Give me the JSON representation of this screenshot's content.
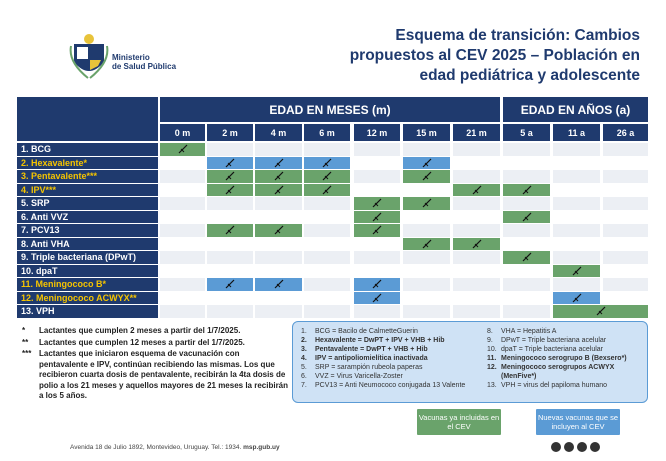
{
  "header": {
    "ministry": [
      "Ministerio",
      "de Salud Pública"
    ],
    "title": [
      "Esquema de transición: Cambios",
      "propuestos al CEV 2025 – Población en",
      "edad pediátrica y adolescente"
    ]
  },
  "table": {
    "groups": [
      "EDAD EN MESES (m)",
      "EDAD EN AÑOS (a)"
    ],
    "columns": [
      "0 m",
      "2 m",
      "4 m",
      "6 m",
      "12 m",
      "15 m",
      "21 m",
      "5 a",
      "11 a",
      "26 a"
    ],
    "rows": [
      {
        "label": "1. BCG",
        "new": false,
        "cells": [
          "#6aa36b",
          null,
          null,
          null,
          null,
          null,
          null,
          null,
          null,
          null
        ]
      },
      {
        "label": "2. Hexavalente*",
        "new": true,
        "cells": [
          null,
          "#5b9bd5",
          "#5b9bd5",
          "#5b9bd5",
          null,
          "#5b9bd5",
          null,
          null,
          null,
          null
        ]
      },
      {
        "label": "3. Pentavalente***",
        "new": true,
        "cells": [
          null,
          "#6aa36b",
          "#6aa36b",
          "#6aa36b",
          null,
          "#6aa36b",
          null,
          null,
          null,
          null
        ]
      },
      {
        "label": "4. IPV***",
        "new": true,
        "cells": [
          null,
          "#6aa36b",
          "#6aa36b",
          "#6aa36b",
          null,
          null,
          "#6aa36b",
          "#6aa36b",
          null,
          null
        ]
      },
      {
        "label": "5. SRP",
        "new": false,
        "cells": [
          null,
          null,
          null,
          null,
          "#6aa36b",
          "#6aa36b",
          null,
          null,
          null,
          null
        ]
      },
      {
        "label": "6. Anti VVZ",
        "new": false,
        "cells": [
          null,
          null,
          null,
          null,
          "#6aa36b",
          null,
          null,
          "#6aa36b",
          null,
          null
        ]
      },
      {
        "label": "7. PCV13",
        "new": false,
        "cells": [
          null,
          "#6aa36b",
          "#6aa36b",
          null,
          "#6aa36b",
          null,
          null,
          null,
          null,
          null
        ]
      },
      {
        "label": "8. Anti VHA",
        "new": false,
        "cells": [
          null,
          null,
          null,
          null,
          null,
          "#6aa36b",
          "#6aa36b",
          null,
          null,
          null
        ]
      },
      {
        "label": "9. Triple bacteriana (DPwT)",
        "new": false,
        "cells": [
          null,
          null,
          null,
          null,
          null,
          null,
          null,
          "#6aa36b",
          null,
          null
        ]
      },
      {
        "label": "10. dpaT",
        "new": false,
        "cells": [
          null,
          null,
          null,
          null,
          null,
          null,
          null,
          null,
          "#6aa36b",
          null
        ]
      },
      {
        "label": "11. Meningococo B*",
        "new": true,
        "cells": [
          null,
          "#5b9bd5",
          "#5b9bd5",
          null,
          "#5b9bd5",
          null,
          null,
          null,
          null,
          null
        ]
      },
      {
        "label": "12. Meningococo ACWYX**",
        "new": true,
        "cells": [
          null,
          null,
          null,
          null,
          "#5b9bd5",
          null,
          null,
          null,
          "#5b9bd5",
          null
        ]
      },
      {
        "label": "13. VPH",
        "new": false,
        "cells": [
          null,
          null,
          null,
          null,
          null,
          null,
          null,
          null,
          "#6aa36b",
          "#6aa36b"
        ]
      }
    ]
  },
  "footnotes": [
    {
      "mark": "*",
      "text": "Lactantes que cumplen 2 meses a partir del 1/7/2025."
    },
    {
      "mark": "**",
      "text": "Lactantes que cumplen 12 meses a partir del 1/7/2025."
    },
    {
      "mark": "***",
      "text": "Lactantes que iniciaron esquema de vacunación con pentavalente e IPV, continúan recibiendo las mismas. Los que recibieron cuarta dosis de pentavalente, recibirán la 4ta dosis de polio a los 21 meses y aquellos mayores de 21 meses la recibirán a los 5 años."
    }
  ],
  "glossary": [
    [
      {
        "num": "1.",
        "text": "BCG = Bacilo de CalmetteGuerin",
        "bold": false
      },
      {
        "num": "2.",
        "text": "Hexavalente = DwPT + IPV + VHB + Hib",
        "bold": true
      },
      {
        "num": "3.",
        "text": "Pentavalente = DwPT + VHB + Hib",
        "bold": true
      },
      {
        "num": "4.",
        "text": "IPV = antipoliomielítica inactivada",
        "bold": true
      },
      {
        "num": "5.",
        "text": "SRP = sarampión rubeola paperas",
        "bold": false
      },
      {
        "num": "6.",
        "text": "VVZ = Virus Varicella-Zoster",
        "bold": false
      },
      {
        "num": "7.",
        "text": "PCV13 = Anti Neumococo conjugada 13 Valente",
        "bold": false
      }
    ],
    [
      {
        "num": "8.",
        "text": "VHA = Hepatitis A",
        "bold": false
      },
      {
        "num": "9.",
        "text": "DPwT = Triple bacteriana acelular",
        "bold": false
      },
      {
        "num": "10.",
        "text": "dpaT = Triple bacteriana acelular",
        "bold": false
      },
      {
        "num": "11.",
        "text": "Meningococo serogrupo B (Bexsero*)",
        "bold": true
      },
      {
        "num": "12.",
        "text": "Meningococo serogrupos ACWYX (MenFive*)",
        "bold": true
      },
      {
        "num": "13.",
        "text": "VPH = virus del papiloma humano",
        "bold": false
      }
    ]
  ],
  "legend": [
    {
      "text": "Vacunas ya incluidas en el CEV",
      "color": "#6aa36b"
    },
    {
      "text": "Nuevas vacunas que se incluyen al CEV",
      "color": "#5b9bd5"
    }
  ],
  "footer": {
    "address": "Avenida 18 de Julio 1892, Montevideo, Uruguay. Tel.: 1934.",
    "web": "msp.gub.uy"
  }
}
